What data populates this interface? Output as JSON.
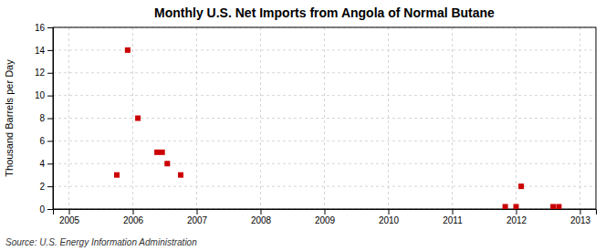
{
  "chart_data": {
    "type": "scatter",
    "title": "Monthly U.S. Net Imports from Angola of Normal Butane",
    "ylabel": "Thousand Barrels per Day",
    "annotation": "Source: U.S. Energy Information Administration",
    "x": [
      2005.75,
      2005.92,
      2006.08,
      2006.38,
      2006.46,
      2006.54,
      2006.75,
      2011.83,
      2012.0,
      2012.08,
      2012.58,
      2012.67
    ],
    "values": [
      3,
      14,
      8,
      5,
      5,
      4,
      3,
      0.2,
      0.2,
      2,
      0.2,
      0.2
    ],
    "color": "#cc0000",
    "marker": "square",
    "grid": true,
    "xlim": [
      2004.75,
      2013.25
    ],
    "ylim": [
      0,
      16
    ],
    "xticks": [
      2005,
      2006,
      2007,
      2008,
      2009,
      2010,
      2011,
      2012,
      2013
    ],
    "yticks": [
      0,
      2,
      4,
      6,
      8,
      10,
      12,
      14,
      16
    ]
  }
}
